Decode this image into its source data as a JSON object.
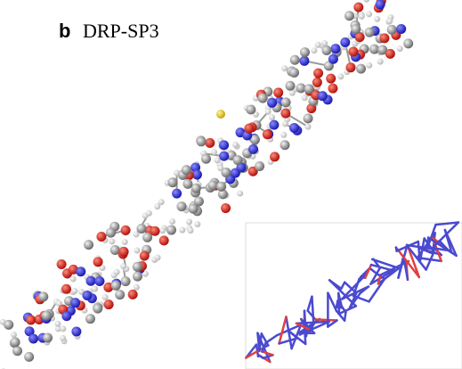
{
  "panel": {
    "label": "b",
    "title": "DRP-SP3"
  }
}
